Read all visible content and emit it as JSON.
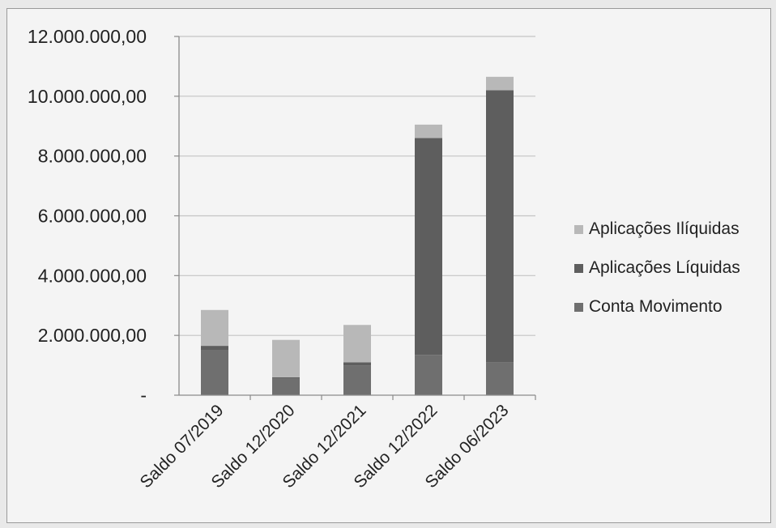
{
  "chart_data": {
    "type": "bar",
    "stacked": true,
    "categories": [
      "Saldo 07/2019",
      "Saldo 12/2020",
      "Saldo 12/2021",
      "Saldo 12/2022",
      "Saldo 06/2023"
    ],
    "series": [
      {
        "name": "Conta Movimento",
        "color": "#6f6f6f",
        "values": [
          1500000,
          550000,
          1000000,
          1350000,
          1100000
        ]
      },
      {
        "name": "Aplicações Líquidas",
        "color": "#5e5e5e",
        "values": [
          150000,
          50000,
          100000,
          7250000,
          9100000
        ]
      },
      {
        "name": "Aplicações Ilíquidas",
        "color": "#b8b8b8",
        "values": [
          1200000,
          1250000,
          1250000,
          450000,
          450000
        ]
      }
    ],
    "legend_order": [
      "Aplicações Ilíquidas",
      "Aplicações Líquidas",
      "Conta Movimento"
    ],
    "yticks": [
      0,
      2000000,
      4000000,
      6000000,
      8000000,
      10000000,
      12000000
    ],
    "ytick_labels": [
      "-",
      "2.000.000,00",
      "4.000.000,00",
      "6.000.000,00",
      "8.000.000,00",
      "10.000.000,00",
      "12.000.000,00"
    ],
    "ylim": [
      0,
      12000000
    ],
    "grid": true,
    "legend_position": "right",
    "title": "",
    "xlabel": "",
    "ylabel": ""
  }
}
